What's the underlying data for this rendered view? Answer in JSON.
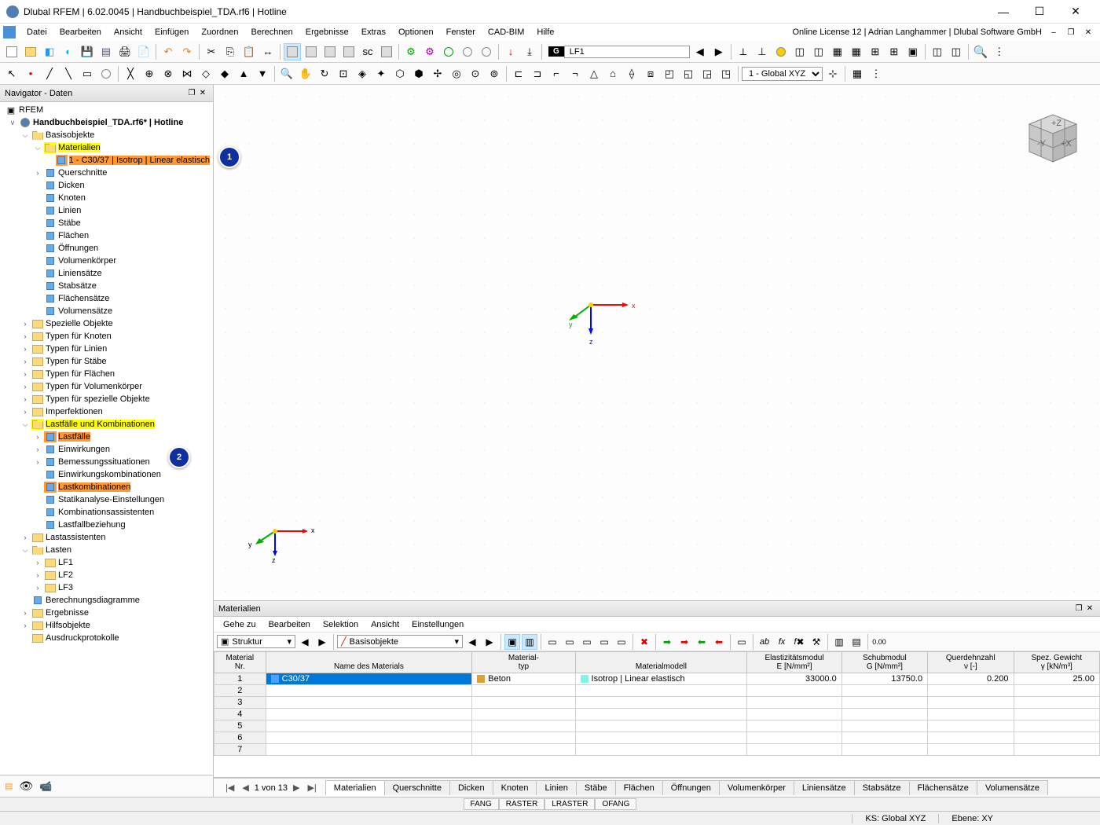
{
  "app": {
    "title": "Dlubal RFEM | 6.02.0045 | Handbuchbeispiel_TDA.rf6 | Hotline",
    "license": "Online License 12 | Adrian Langhammer | Dlubal Software GmbH"
  },
  "menu": {
    "items": [
      "Datei",
      "Bearbeiten",
      "Ansicht",
      "Einfügen",
      "Zuordnen",
      "Berechnen",
      "Ergebnisse",
      "Extras",
      "Optionen",
      "Fenster",
      "CAD-BIM",
      "Hilfe"
    ]
  },
  "toolbar": {
    "lf_badge": "G",
    "lf_label": "LF1",
    "coord_sys": "1 - Global XYZ"
  },
  "navigator": {
    "title": "Navigator - Daten",
    "root": "RFEM",
    "model": "Handbuchbeispiel_TDA.rf6* | Hotline",
    "tree": [
      {
        "indent": 1,
        "toggle": "v",
        "icon": "folder-open",
        "label": "Basisobjekte"
      },
      {
        "indent": 2,
        "toggle": "v",
        "icon": "folder-open",
        "label": "Materialien",
        "hl": "yellow"
      },
      {
        "indent": 3,
        "toggle": "",
        "icon": "leaf",
        "label": "1 - C30/37 | Isotrop | Linear elastisch",
        "hl": "orange"
      },
      {
        "indent": 2,
        "toggle": ">",
        "icon": "leaf",
        "label": "Querschnitte"
      },
      {
        "indent": 2,
        "toggle": "",
        "icon": "leaf",
        "label": "Dicken"
      },
      {
        "indent": 2,
        "toggle": "",
        "icon": "leaf",
        "label": "Knoten"
      },
      {
        "indent": 2,
        "toggle": "",
        "icon": "leaf",
        "label": "Linien"
      },
      {
        "indent": 2,
        "toggle": "",
        "icon": "leaf",
        "label": "Stäbe"
      },
      {
        "indent": 2,
        "toggle": "",
        "icon": "leaf",
        "label": "Flächen"
      },
      {
        "indent": 2,
        "toggle": "",
        "icon": "leaf",
        "label": "Öffnungen"
      },
      {
        "indent": 2,
        "toggle": "",
        "icon": "leaf",
        "label": "Volumenkörper"
      },
      {
        "indent": 2,
        "toggle": "",
        "icon": "leaf",
        "label": "Liniensätze"
      },
      {
        "indent": 2,
        "toggle": "",
        "icon": "leaf",
        "label": "Stabsätze"
      },
      {
        "indent": 2,
        "toggle": "",
        "icon": "leaf",
        "label": "Flächensätze"
      },
      {
        "indent": 2,
        "toggle": "",
        "icon": "leaf",
        "label": "Volumensätze"
      },
      {
        "indent": 1,
        "toggle": ">",
        "icon": "folder",
        "label": "Spezielle Objekte"
      },
      {
        "indent": 1,
        "toggle": ">",
        "icon": "folder",
        "label": "Typen für Knoten"
      },
      {
        "indent": 1,
        "toggle": ">",
        "icon": "folder",
        "label": "Typen für Linien"
      },
      {
        "indent": 1,
        "toggle": ">",
        "icon": "folder",
        "label": "Typen für Stäbe"
      },
      {
        "indent": 1,
        "toggle": ">",
        "icon": "folder",
        "label": "Typen für Flächen"
      },
      {
        "indent": 1,
        "toggle": ">",
        "icon": "folder",
        "label": "Typen für Volumenkörper"
      },
      {
        "indent": 1,
        "toggle": ">",
        "icon": "folder",
        "label": "Typen für spezielle Objekte"
      },
      {
        "indent": 1,
        "toggle": ">",
        "icon": "folder",
        "label": "Imperfektionen"
      },
      {
        "indent": 1,
        "toggle": "v",
        "icon": "folder-open",
        "label": "Lastfälle und Kombinationen",
        "hl": "yellow"
      },
      {
        "indent": 2,
        "toggle": ">",
        "icon": "leaf",
        "label": "Lastfälle",
        "hl": "orange"
      },
      {
        "indent": 2,
        "toggle": ">",
        "icon": "leaf",
        "label": "Einwirkungen"
      },
      {
        "indent": 2,
        "toggle": ">",
        "icon": "leaf",
        "label": "Bemessungssituationen"
      },
      {
        "indent": 2,
        "toggle": "",
        "icon": "leaf",
        "label": "Einwirkungskombinationen"
      },
      {
        "indent": 2,
        "toggle": "",
        "icon": "leaf",
        "label": "Lastkombinationen",
        "hl": "orange"
      },
      {
        "indent": 2,
        "toggle": "",
        "icon": "leaf",
        "label": "Statikanalyse-Einstellungen"
      },
      {
        "indent": 2,
        "toggle": "",
        "icon": "leaf",
        "label": "Kombinationsassistenten"
      },
      {
        "indent": 2,
        "toggle": "",
        "icon": "leaf",
        "label": "Lastfallbeziehung"
      },
      {
        "indent": 1,
        "toggle": ">",
        "icon": "folder",
        "label": "Lastassistenten"
      },
      {
        "indent": 1,
        "toggle": "v",
        "icon": "folder-open",
        "label": "Lasten"
      },
      {
        "indent": 2,
        "toggle": ">",
        "icon": "folder",
        "label": "LF1"
      },
      {
        "indent": 2,
        "toggle": ">",
        "icon": "folder",
        "label": "LF2"
      },
      {
        "indent": 2,
        "toggle": ">",
        "icon": "folder",
        "label": "LF3"
      },
      {
        "indent": 1,
        "toggle": "",
        "icon": "leaf",
        "label": "Berechnungsdiagramme"
      },
      {
        "indent": 1,
        "toggle": ">",
        "icon": "folder",
        "label": "Ergebnisse"
      },
      {
        "indent": 1,
        "toggle": ">",
        "icon": "folder",
        "label": "Hilfsobjekte"
      },
      {
        "indent": 1,
        "toggle": "",
        "icon": "folder",
        "label": "Ausdruckprotokolle"
      }
    ]
  },
  "callouts": {
    "c1": "1",
    "c2": "2"
  },
  "viewport": {
    "axes": {
      "x": "x",
      "y": "y",
      "z": "z"
    }
  },
  "bottom": {
    "title": "Materialien",
    "menu": [
      "Gehe zu",
      "Bearbeiten",
      "Selektion",
      "Ansicht",
      "Einstellungen"
    ],
    "combo1": "Struktur",
    "combo2": "Basisobjekte",
    "headers": [
      {
        "l1": "Material",
        "l2": "Nr."
      },
      {
        "l1": "",
        "l2": "Name des Materials"
      },
      {
        "l1": "Material-",
        "l2": "typ"
      },
      {
        "l1": "",
        "l2": "Materialmodell"
      },
      {
        "l1": "Elastizitätsmodul",
        "l2": "E [N/mm²]"
      },
      {
        "l1": "Schubmodul",
        "l2": "G [N/mm²]"
      },
      {
        "l1": "Querdehnzahl",
        "l2": "ν [-]"
      },
      {
        "l1": "Spez. Gewicht",
        "l2": "γ [kN/m³]"
      }
    ],
    "rows": [
      {
        "num": "1",
        "name": "C30/37",
        "name_color": "#4aa3ff",
        "type": "Beton",
        "type_color": "#e0a030",
        "model": "Isotrop | Linear elastisch",
        "model_color": "#7ff5e8",
        "E": "33000.0",
        "G": "13750.0",
        "nu": "0.200",
        "gamma": "25.00",
        "selected": true
      },
      {
        "num": "2"
      },
      {
        "num": "3"
      },
      {
        "num": "4"
      },
      {
        "num": "5"
      },
      {
        "num": "6"
      },
      {
        "num": "7"
      }
    ],
    "record_nav": "1 von 13",
    "tabs": [
      "Materialien",
      "Querschnitte",
      "Dicken",
      "Knoten",
      "Linien",
      "Stäbe",
      "Flächen",
      "Öffnungen",
      "Volumenkörper",
      "Liniensätze",
      "Stabsätze",
      "Flächensätze",
      "Volumensätze"
    ]
  },
  "status": {
    "buttons": [
      "FANG",
      "RASTER",
      "LRASTER",
      "OFANG"
    ],
    "ks": "KS: Global XYZ",
    "ebene": "Ebene: XY"
  },
  "colors": {
    "highlight_yellow": "#ffff00",
    "highlight_orange": "#ff9933",
    "selection_blue": "#0078d7",
    "callout_bg": "#1030a0",
    "axis_x": "#ff0000",
    "axis_y": "#00b000",
    "axis_z": "#0000ff"
  }
}
